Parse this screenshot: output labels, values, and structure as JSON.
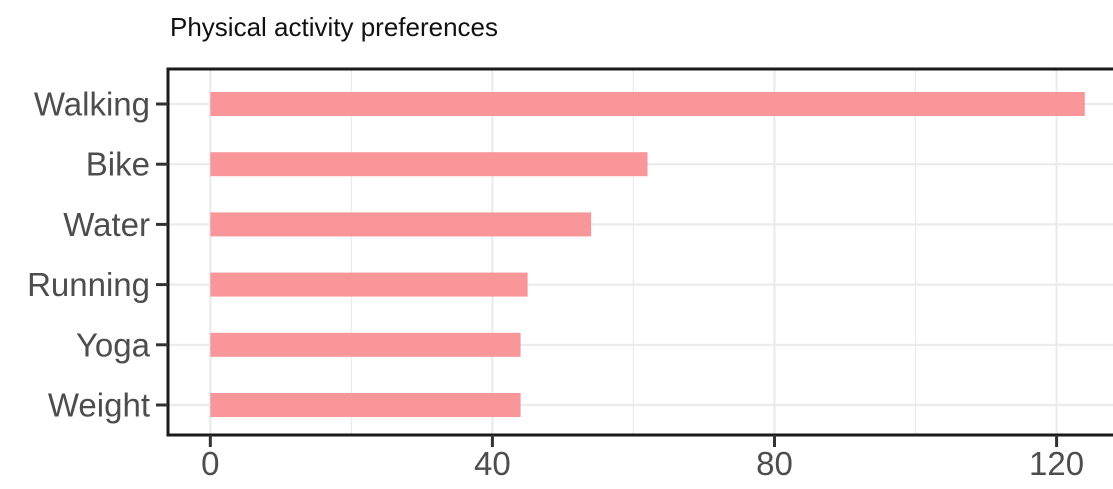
{
  "chart_data": {
    "type": "bar",
    "orientation": "horizontal",
    "title": "Physical activity preferences",
    "xlabel": "",
    "ylabel": "",
    "categories": [
      "Walking",
      "Bike",
      "Water",
      "Running",
      "Yoga",
      "Weight"
    ],
    "values": [
      124,
      62,
      54,
      45,
      44,
      44
    ],
    "xlim": [
      -6,
      128
    ],
    "xticks": [
      0,
      40,
      80,
      120
    ],
    "grid": true,
    "legend": "none",
    "bar_color": "#f8969a",
    "grid_color": "#ebebeb",
    "panel_border_color": "#1a1a1a"
  }
}
